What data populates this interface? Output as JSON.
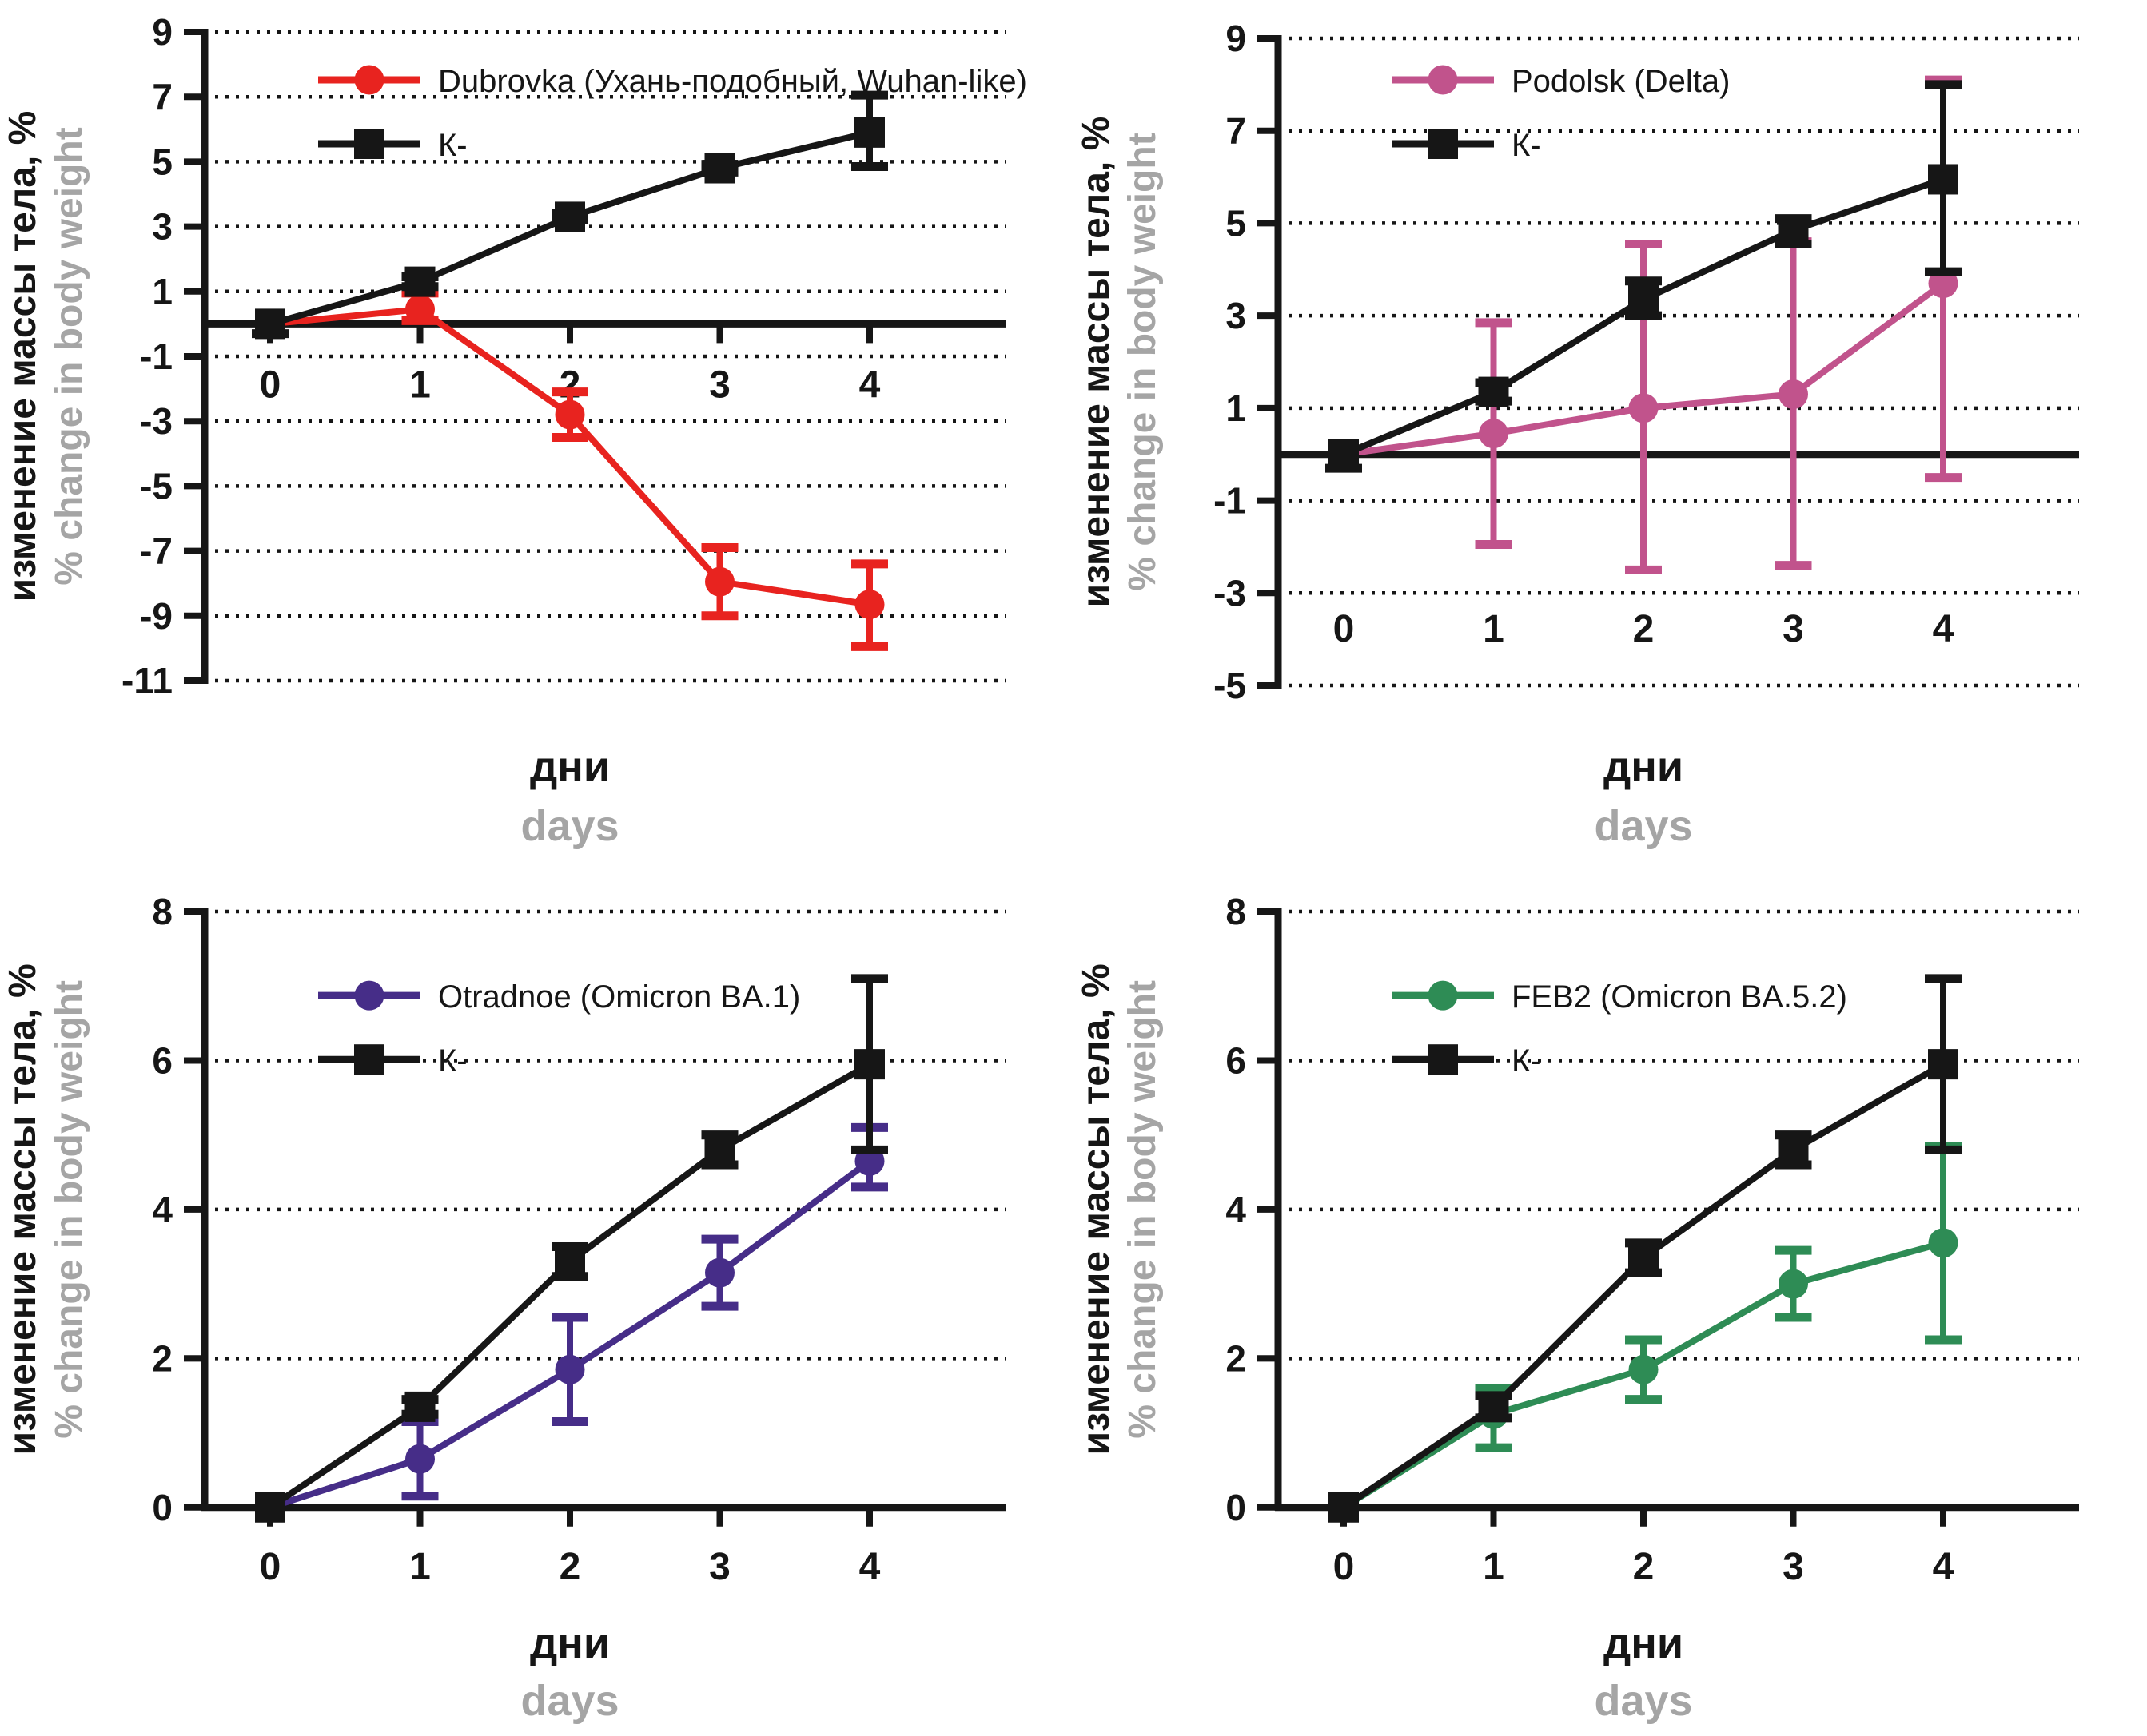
{
  "colors": {
    "background": "#ffffff",
    "axis_black": "#161616",
    "muted_gray": "#a5a5a5",
    "dubrovka_red": "#e8231f",
    "podolsk_pink": "#c1538c",
    "otradnoe_purple": "#462d88",
    "feb2_green": "#2e8c55",
    "control_black": "#161616"
  },
  "chart_data": [
    {
      "panel": "top-left",
      "type": "line",
      "x": [
        0,
        1,
        2,
        3,
        4
      ],
      "x_tick_labels": [
        "0",
        "1",
        "2",
        "3",
        "4"
      ],
      "xlabel_ru": "дни",
      "xlabel_en": "days",
      "ylabel_ru": "изменение массы тела, %",
      "ylabel_en": "% change in body weight",
      "ylim": [
        -11,
        9
      ],
      "y_ticks": [
        9,
        7,
        5,
        3,
        1,
        -1,
        -3,
        -5,
        -7,
        -9,
        -11
      ],
      "grid": "dotted-horizontal",
      "zero_line": true,
      "legend_position": "top-left-inside",
      "series": [
        {
          "name": "Dubrovka (Ухань-подобный, Wuhan-like)",
          "color": "#e8231f",
          "marker": "circle",
          "values": [
            0,
            0.45,
            -2.8,
            -7.95,
            -8.65
          ],
          "err_minus": [
            0,
            0.35,
            0.7,
            1.05,
            1.3
          ],
          "err_plus": [
            0,
            0.5,
            0.7,
            1.05,
            1.25
          ]
        },
        {
          "name": "К-",
          "color": "#161616",
          "marker": "square",
          "values": [
            0,
            1.3,
            3.3,
            4.8,
            5.9
          ],
          "err_minus": [
            0.3,
            0.15,
            0.1,
            0.12,
            1.05
          ],
          "err_plus": [
            0,
            0.15,
            0.1,
            0.12,
            1.15
          ]
        }
      ]
    },
    {
      "panel": "top-right",
      "type": "line",
      "x": [
        0,
        1,
        2,
        3,
        4
      ],
      "x_tick_labels": [
        "0",
        "1",
        "2",
        "3",
        "4"
      ],
      "xlabel_ru": "дни",
      "xlabel_en": "days",
      "ylabel_ru": "изменение массы тела, %",
      "ylabel_en": "% change in body weight",
      "ylim": [
        -5,
        9
      ],
      "y_ticks": [
        9,
        7,
        5,
        3,
        1,
        -1,
        -3,
        -5
      ],
      "grid": "dotted-horizontal",
      "zero_line": true,
      "legend_position": "top-left-inside",
      "series": [
        {
          "name": "Podolsk (Delta)",
          "color": "#c1538c",
          "marker": "circle",
          "values": [
            0,
            0.45,
            1.0,
            1.3,
            3.7
          ],
          "err_minus": [
            0,
            2.4,
            3.5,
            3.7,
            4.2
          ],
          "err_plus": [
            0,
            2.4,
            3.55,
            3.3,
            4.4
          ]
        },
        {
          "name": "К-",
          "color": "#161616",
          "marker": "square",
          "values": [
            0,
            1.35,
            3.35,
            4.85,
            5.95
          ],
          "err_minus": [
            0.3,
            0.2,
            0.35,
            0.3,
            2.0
          ],
          "err_plus": [
            0,
            0.2,
            0.4,
            0.25,
            2.05
          ]
        }
      ]
    },
    {
      "panel": "bottom-left",
      "type": "line",
      "x": [
        0,
        1,
        2,
        3,
        4
      ],
      "x_tick_labels": [
        "0",
        "1",
        "2",
        "3",
        "4"
      ],
      "xlabel_ru": "дни",
      "xlabel_en": "days",
      "ylabel_ru": "изменение массы тела, %",
      "ylabel_en": "% change in body weight",
      "ylim": [
        0,
        8
      ],
      "y_ticks": [
        8,
        6,
        4,
        2,
        0
      ],
      "grid": "dotted-horizontal",
      "zero_line": true,
      "legend_position": "top-left-inside",
      "series": [
        {
          "name": "Otradnoe (Omicron BA.1)",
          "color": "#462d88",
          "marker": "circle",
          "values": [
            0,
            0.65,
            1.85,
            3.15,
            4.65
          ],
          "err_minus": [
            0,
            0.5,
            0.7,
            0.45,
            0.35
          ],
          "err_plus": [
            0,
            0.5,
            0.7,
            0.45,
            0.45
          ]
        },
        {
          "name": "К-",
          "color": "#161616",
          "marker": "square",
          "values": [
            0,
            1.35,
            3.3,
            4.8,
            5.95
          ],
          "err_minus": [
            0,
            0.1,
            0.2,
            0.2,
            1.15
          ],
          "err_plus": [
            0,
            0.1,
            0.2,
            0.2,
            1.15
          ]
        }
      ]
    },
    {
      "panel": "bottom-right",
      "type": "line",
      "x": [
        0,
        1,
        2,
        3,
        4
      ],
      "x_tick_labels": [
        "0",
        "1",
        "2",
        "3",
        "4"
      ],
      "xlabel_ru": "дни",
      "xlabel_en": "days",
      "ylabel_ru": "изменение массы тела, %",
      "ylabel_en": "% change in body weight",
      "ylim": [
        0,
        8
      ],
      "y_ticks": [
        8,
        6,
        4,
        2,
        0
      ],
      "grid": "dotted-horizontal",
      "zero_line": true,
      "legend_position": "top-left-inside",
      "series": [
        {
          "name": "FEB2 (Omicron BA.5.2)",
          "color": "#2e8c55",
          "marker": "circle",
          "values": [
            0,
            1.25,
            1.85,
            3.0,
            3.55
          ],
          "err_minus": [
            0,
            0.45,
            0.4,
            0.45,
            1.3
          ],
          "err_plus": [
            0,
            0.35,
            0.4,
            0.45,
            1.3
          ]
        },
        {
          "name": "К-",
          "color": "#161616",
          "marker": "square",
          "values": [
            0,
            1.35,
            3.35,
            4.8,
            5.95
          ],
          "err_minus": [
            0,
            0.15,
            0.2,
            0.2,
            1.15
          ],
          "err_plus": [
            0,
            0.15,
            0.2,
            0.2,
            1.15
          ]
        }
      ]
    }
  ]
}
